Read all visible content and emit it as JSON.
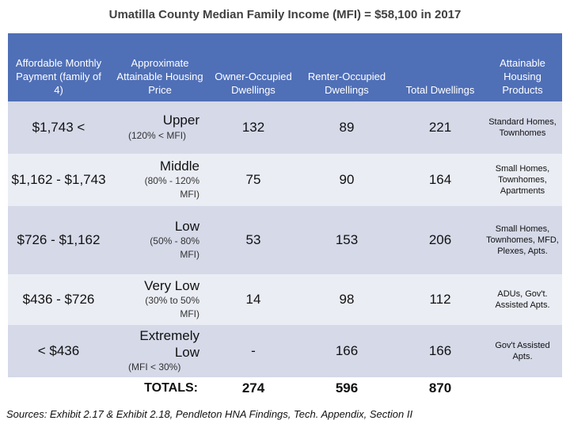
{
  "title": "Umatilla County Median Family Income (MFI) = $58,100 in 2017",
  "headers": {
    "payment": "Affordable Monthly Payment (family of 4)",
    "price": "Approximate Attainable Housing Price",
    "owner": "Owner-Occupied Dwellings",
    "renter": "Renter-Occupied Dwellings",
    "total": "Total Dwellings",
    "products": "Attainable Housing Products"
  },
  "rows": [
    {
      "payment": "$1,743 <",
      "level": "Upper",
      "range": "(120% < MFI)",
      "owner": "132",
      "renter": "89",
      "total": "221",
      "products": "Standard Homes, Townhomes"
    },
    {
      "payment": "$1,162 - $1,743",
      "level": "Middle",
      "range": "(80% - 120% MFI)",
      "owner": "75",
      "renter": "90",
      "total": "164",
      "products": "Small Homes, Townhomes, Apartments"
    },
    {
      "payment": "$726 - $1,162",
      "level": "Low",
      "range": "(50% - 80% MFI)",
      "owner": "53",
      "renter": "153",
      "total": "206",
      "products": "Small Homes, Townhomes, MFD, Plexes, Apts."
    },
    {
      "payment": "$436 - $726",
      "level": "Very Low",
      "range": "(30% to 50% MFI)",
      "owner": "14",
      "renter": "98",
      "total": "112",
      "products": "ADUs, Gov't. Assisted Apts."
    },
    {
      "payment": "< $436",
      "level": "Extremely Low",
      "range": "(MFI < 30%)",
      "owner": "-",
      "renter": "166",
      "total": "166",
      "products": "Gov't Assisted Apts."
    }
  ],
  "totals": {
    "label": "TOTALS:",
    "owner": "274",
    "renter": "596",
    "total": "870"
  },
  "source": "Sources: Exhibit 2.17 & Exhibit 2.18, Pendleton HNA Findings, Tech. Appendix, Section II",
  "colors": {
    "header_bg": "#4f6fb7",
    "row_dark": "#d5d9e8",
    "row_light": "#eaedf4"
  }
}
